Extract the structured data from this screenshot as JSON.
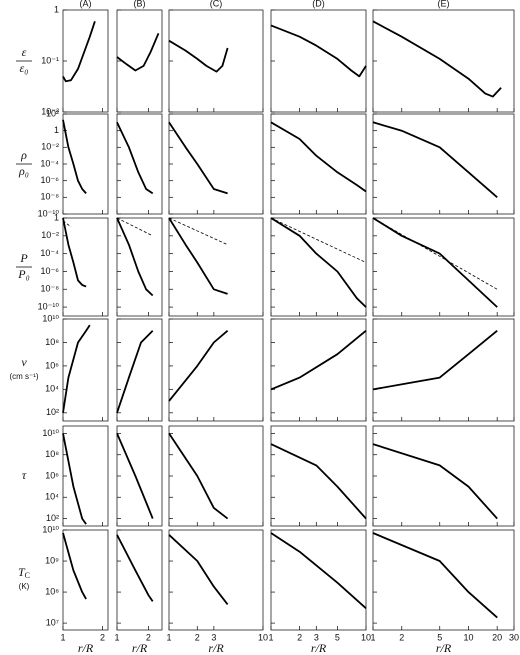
{
  "chart_data": {
    "type": "line",
    "xlabel": "r/R",
    "log_x": true,
    "log_y": true,
    "color": "#000000",
    "columns": [
      {
        "title": "(A)",
        "xlim": [
          1,
          2.2
        ],
        "xticks": [
          1,
          2
        ]
      },
      {
        "title": "(B)",
        "xlim": [
          1,
          2.7
        ],
        "xticks": [
          1,
          2
        ]
      },
      {
        "title": "(C)",
        "xlim": [
          1,
          10
        ],
        "xticks": [
          1,
          2,
          3,
          10
        ]
      },
      {
        "title": "(D)",
        "xlim": [
          1,
          10
        ],
        "xticks": [
          1,
          2,
          3,
          5,
          10
        ]
      },
      {
        "title": "(E)",
        "xlim": [
          1,
          30
        ],
        "xticks": [
          1,
          2,
          5,
          10,
          20,
          30
        ]
      }
    ],
    "rows": [
      {
        "ylabel": "ε",
        "ylabel_den": "ε₀",
        "ylim": [
          0.01,
          1
        ],
        "yticks": [
          1,
          {
            "value": 0.1,
            "label": "10⁻¹"
          },
          {
            "value": 0.01,
            "label": "10⁻²"
          }
        ]
      },
      {
        "ylabel": "ρ",
        "ylabel_den": "ρ₀",
        "ylim": [
          1e-10,
          100
        ],
        "yticks": [
          {
            "value": 100,
            "label": "10²"
          },
          1,
          {
            "value": 0.01,
            "label": "10⁻²"
          },
          {
            "value": 0.0001,
            "label": "10⁻⁴"
          },
          {
            "value": 1e-06,
            "label": "10⁻⁶"
          },
          {
            "value": 1e-08,
            "label": "10⁻⁸"
          },
          {
            "value": 1e-10,
            "label": "10⁻¹⁰"
          }
        ]
      },
      {
        "ylabel": "P",
        "ylabel_den": "P₀",
        "ylim": [
          1e-11,
          1
        ],
        "yticks": [
          1,
          {
            "value": 0.01,
            "label": "10⁻²"
          },
          {
            "value": 0.0001,
            "label": "10⁻⁴"
          },
          {
            "value": 1e-06,
            "label": "10⁻⁶"
          },
          {
            "value": 1e-08,
            "label": "10⁻⁸"
          },
          {
            "value": 1e-10,
            "label": "10⁻¹⁰"
          }
        ]
      },
      {
        "ylabel": "v",
        "ylabel_unit": "(cm s⁻¹)",
        "ylim": [
          20,
          10000000000.0
        ],
        "yticks": [
          {
            "value": 100,
            "label": "10²"
          },
          {
            "value": 10000,
            "label": "10⁴"
          },
          {
            "value": 1000000,
            "label": "10⁶"
          },
          {
            "value": 100000000,
            "label": "10⁸"
          },
          {
            "value": 10000000000.0,
            "label": "10¹⁰"
          }
        ]
      },
      {
        "ylabel": "τ",
        "ylim": [
          20,
          50000000000.0
        ],
        "yticks": [
          {
            "value": 100,
            "label": "10²"
          },
          {
            "value": 10000,
            "label": "10⁴"
          },
          {
            "value": 1000000,
            "label": "10⁶"
          },
          {
            "value": 100000000,
            "label": "10⁸"
          },
          {
            "value": 10000000000.0,
            "label": "10¹⁰"
          }
        ]
      },
      {
        "ylabel": "T",
        "ylabel_sub": "C",
        "ylabel_unit": "(K)",
        "ylim": [
          6000000,
          10000000000.0
        ],
        "yticks": [
          {
            "value": 10000000,
            "label": "10⁷"
          },
          {
            "value": 100000000,
            "label": "10⁸"
          },
          {
            "value": 1000000000,
            "label": "10⁹"
          },
          {
            "value": 10000000000.0,
            "label": "10¹⁰"
          }
        ]
      }
    ],
    "panels": [
      [
        {
          "series": [
            {
              "x": [
                1,
                1.05,
                1.15,
                1.3,
                1.45,
                1.6,
                1.75
              ],
              "values": [
                0.05,
                0.04,
                0.042,
                0.07,
                0.15,
                0.3,
                0.6
              ]
            }
          ]
        },
        {
          "series": [
            {
              "x": [
                1,
                1.2,
                1.5,
                1.8,
                2.1,
                2.5
              ],
              "values": [
                0.12,
                0.09,
                0.065,
                0.08,
                0.15,
                0.35
              ]
            }
          ]
        },
        {
          "series": [
            {
              "x": [
                1,
                1.5,
                2,
                2.5,
                3.2,
                3.7,
                4.2
              ],
              "values": [
                0.25,
                0.16,
                0.11,
                0.08,
                0.062,
                0.08,
                0.18
              ]
            }
          ]
        },
        {
          "series": [
            {
              "x": [
                1,
                2,
                3,
                5,
                7,
                8.5,
                10
              ],
              "values": [
                0.5,
                0.3,
                0.2,
                0.11,
                0.065,
                0.05,
                0.08
              ]
            }
          ]
        },
        {
          "series": [
            {
              "x": [
                1,
                2,
                5,
                10,
                15,
                18,
                22
              ],
              "values": [
                0.6,
                0.3,
                0.11,
                0.045,
                0.023,
                0.02,
                0.03
              ]
            }
          ]
        }
      ],
      [
        {
          "series": [
            {
              "x": [
                1,
                1.1,
                1.2,
                1.3,
                1.4,
                1.5
              ],
              "values": [
                20,
                0.01,
                0.0001,
                1e-06,
                1e-07,
                3e-08
              ]
            }
          ]
        },
        {
          "series": [
            {
              "x": [
                1,
                1.3,
                1.6,
                1.9,
                2.2
              ],
              "values": [
                10,
                0.01,
                1e-05,
                1e-07,
                3e-08
              ]
            }
          ]
        },
        {
          "series": [
            {
              "x": [
                1,
                1.5,
                2,
                3,
                4.2
              ],
              "values": [
                10,
                0.01,
                0.0001,
                1e-07,
                3e-08
              ]
            }
          ]
        },
        {
          "series": [
            {
              "x": [
                1,
                2,
                3,
                5,
                8,
                10
              ],
              "values": [
                10,
                0.1,
                0.001,
                1e-05,
                3e-07,
                5e-08
              ]
            }
          ]
        },
        {
          "series": [
            {
              "x": [
                1,
                2,
                5,
                10,
                20
              ],
              "values": [
                10,
                1,
                0.01,
                1e-05,
                1e-08
              ]
            }
          ]
        }
      ],
      [
        {
          "series": [
            {
              "x": [
                1,
                1.1,
                1.2,
                1.3,
                1.4,
                1.5
              ],
              "values": [
                1,
                0.001,
                1e-05,
                1e-07,
                3e-08,
                2e-08
              ]
            },
            {
              "x": [
                1,
                1.15
              ],
              "values": [
                0.5,
                0.1
              ],
              "dashed": true
            }
          ]
        },
        {
          "series": [
            {
              "x": [
                1,
                1.3,
                1.6,
                1.9,
                2.2
              ],
              "values": [
                1,
                0.001,
                1e-06,
                1e-08,
                2e-09
              ]
            },
            {
              "x": [
                1,
                2.2
              ],
              "values": [
                1,
                0.01
              ],
              "dashed": true
            }
          ]
        },
        {
          "series": [
            {
              "x": [
                1,
                1.5,
                2,
                3,
                4.2
              ],
              "values": [
                1,
                0.001,
                1e-05,
                1e-08,
                3e-09
              ]
            },
            {
              "x": [
                1,
                4.2
              ],
              "values": [
                1,
                0.001
              ],
              "dashed": true
            }
          ]
        },
        {
          "series": [
            {
              "x": [
                1,
                2,
                3,
                5,
                8,
                10
              ],
              "values": [
                1,
                0.01,
                0.0001,
                1e-06,
                1e-09,
                1e-10
              ]
            },
            {
              "x": [
                1,
                10
              ],
              "values": [
                1,
                1e-05
              ],
              "dashed": true
            }
          ]
        },
        {
          "series": [
            {
              "x": [
                1,
                2,
                5,
                10,
                20
              ],
              "values": [
                1,
                0.01,
                0.0001,
                1e-07,
                1e-10
              ]
            },
            {
              "x": [
                1,
                20
              ],
              "values": [
                1,
                1e-08
              ],
              "dashed": true
            }
          ]
        }
      ],
      [
        {
          "series": [
            {
              "x": [
                1,
                1.1,
                1.3,
                1.5,
                1.6
              ],
              "values": [
                100,
                100000,
                100000000,
                1000000000,
                3000000000
              ]
            }
          ]
        },
        {
          "series": [
            {
              "x": [
                1,
                1.3,
                1.7,
                2.2
              ],
              "values": [
                100,
                100000,
                100000000,
                1000000000
              ]
            }
          ]
        },
        {
          "series": [
            {
              "x": [
                1,
                2,
                3,
                4.2
              ],
              "values": [
                1000,
                1000000,
                100000000,
                1000000000
              ]
            }
          ]
        },
        {
          "series": [
            {
              "x": [
                1,
                2,
                5,
                10
              ],
              "values": [
                10000,
                100000,
                10000000,
                1000000000
              ]
            }
          ]
        },
        {
          "series": [
            {
              "x": [
                1,
                5,
                10,
                20
              ],
              "values": [
                10000,
                100000,
                10000000,
                1000000000
              ]
            }
          ]
        }
      ],
      [
        {
          "series": [
            {
              "x": [
                1,
                1.2,
                1.4,
                1.5
              ],
              "values": [
                10000000000.0,
                100000,
                100,
                30
              ]
            }
          ]
        },
        {
          "series": [
            {
              "x": [
                1,
                1.5,
                2,
                2.2
              ],
              "values": [
                10000000000.0,
                1000000,
                1000,
                100
              ]
            }
          ]
        },
        {
          "series": [
            {
              "x": [
                1,
                2,
                3,
                4.2
              ],
              "values": [
                10000000000.0,
                1000000,
                1000,
                100
              ]
            }
          ]
        },
        {
          "series": [
            {
              "x": [
                1,
                3,
                5,
                10
              ],
              "values": [
                1000000000,
                10000000,
                100000,
                100
              ]
            }
          ]
        },
        {
          "series": [
            {
              "x": [
                1,
                5,
                10,
                20
              ],
              "values": [
                1000000000,
                10000000,
                100000,
                100
              ]
            }
          ]
        }
      ],
      [
        {
          "series": [
            {
              "x": [
                1,
                1.2,
                1.4,
                1.5
              ],
              "values": [
                8000000000,
                500000000,
                100000000,
                60000000
              ]
            }
          ]
        },
        {
          "series": [
            {
              "x": [
                1,
                1.5,
                2,
                2.2
              ],
              "values": [
                7000000000,
                500000000,
                80000000,
                50000000
              ]
            }
          ]
        },
        {
          "series": [
            {
              "x": [
                1,
                2,
                3,
                4.2
              ],
              "values": [
                7000000000,
                1000000000,
                150000000,
                40000000
              ]
            }
          ]
        },
        {
          "series": [
            {
              "x": [
                1,
                2,
                5,
                10
              ],
              "values": [
                8000000000,
                2000000000,
                200000000,
                30000000
              ]
            }
          ]
        },
        {
          "series": [
            {
              "x": [
                1,
                5,
                10,
                20
              ],
              "values": [
                8000000000,
                1000000000,
                100000000,
                15000000
              ]
            }
          ]
        }
      ]
    ]
  }
}
